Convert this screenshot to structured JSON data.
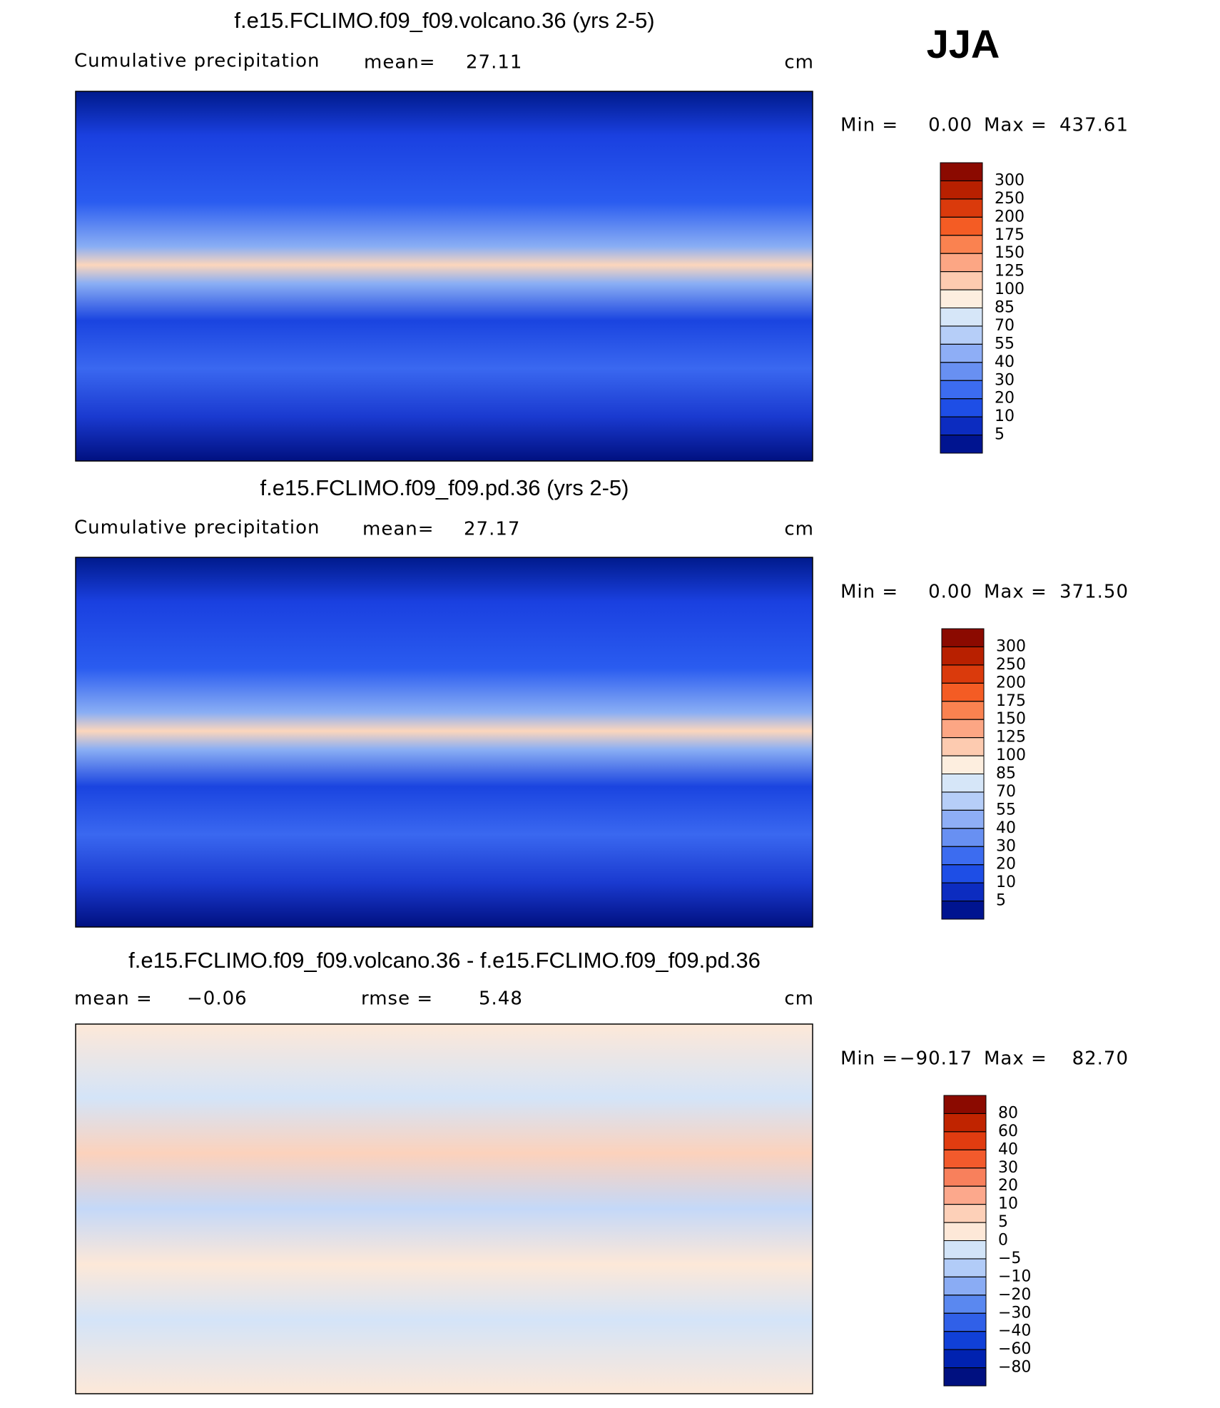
{
  "season": "JJA",
  "panels": [
    {
      "title": "f.e15.FCLIMO.f09_f09.volcano.36 (yrs 2-5)",
      "left_label": "Cumulative precipitation",
      "stats": [
        {
          "label": "mean=",
          "value": "27.11"
        }
      ],
      "units": "cm",
      "min_label": "Min =",
      "min_value": "0.00",
      "max_label": "Max =",
      "max_value": "437.61",
      "colorbar": {
        "levels": [
          300,
          250,
          200,
          175,
          150,
          125,
          100,
          85,
          70,
          55,
          40,
          30,
          20,
          10,
          5
        ],
        "colors": [
          "#8b0a00",
          "#b82000",
          "#da3a0c",
          "#f45c24",
          "#fa8250",
          "#fca684",
          "#fdcbb0",
          "#fdeedf",
          "#d6e6f8",
          "#b6cef8",
          "#8eaef6",
          "#6890f2",
          "#3c6cf0",
          "#1e4ee6",
          "#0c2cc0",
          "#001490"
        ]
      }
    },
    {
      "title": "f.e15.FCLIMO.f09_f09.pd.36 (yrs 2-5)",
      "left_label": "Cumulative precipitation",
      "stats": [
        {
          "label": "mean=",
          "value": "27.17"
        }
      ],
      "units": "cm",
      "min_label": "Min =",
      "min_value": "0.00",
      "max_label": "Max =",
      "max_value": "371.50",
      "colorbar": {
        "levels": [
          300,
          250,
          200,
          175,
          150,
          125,
          100,
          85,
          70,
          55,
          40,
          30,
          20,
          10,
          5
        ],
        "colors": [
          "#8b0a00",
          "#b82000",
          "#da3a0c",
          "#f45c24",
          "#fa8250",
          "#fca684",
          "#fdcbb0",
          "#fdeedf",
          "#d6e6f8",
          "#b6cef8",
          "#8eaef6",
          "#6890f2",
          "#3c6cf0",
          "#1e4ee6",
          "#0c2cc0",
          "#001490"
        ]
      }
    },
    {
      "title": "f.e15.FCLIMO.f09_f09.volcano.36 - f.e15.FCLIMO.f09_f09.pd.36",
      "stats": [
        {
          "label": "mean =",
          "value": "−0.06"
        },
        {
          "label": "rmse =",
          "value": "5.48"
        }
      ],
      "units": "cm",
      "min_label": "Min =",
      "min_value": "−90.17",
      "max_label": "Max =",
      "max_value": "82.70",
      "colorbar": {
        "levels": [
          80,
          60,
          40,
          30,
          20,
          10,
          5,
          0,
          {
            "value": -5,
            "label": "−5"
          },
          {
            "value": -10,
            "label": "−10"
          },
          {
            "value": -20,
            "label": "−20"
          },
          {
            "value": -30,
            "label": "−30"
          },
          {
            "value": -40,
            "label": "−40"
          },
          {
            "value": -60,
            "label": "−60"
          },
          {
            "value": -80,
            "label": "−80"
          }
        ],
        "colors": [
          "#8b0a00",
          "#c02400",
          "#e03c10",
          "#f25a2c",
          "#f8805c",
          "#fca88c",
          "#fdd0b8",
          "#fde8d8",
          "#d2e4f8",
          "#b2ccf8",
          "#8aacf4",
          "#5a88f0",
          "#3060e8",
          "#1040d8",
          "#0022b0",
          "#001080"
        ]
      }
    }
  ]
}
